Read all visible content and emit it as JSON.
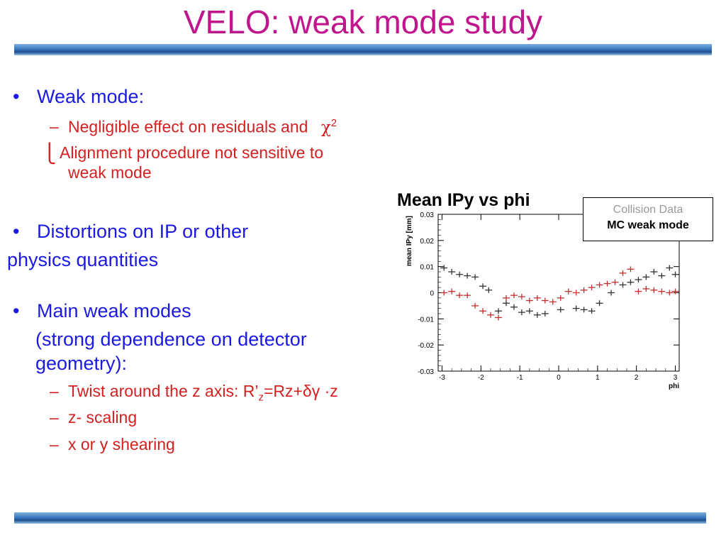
{
  "slide": {
    "title": "VELO: weak mode study",
    "bullets": {
      "b1": "Weak mode:",
      "b1_sub1": "Negligible effect on residuals and",
      "b1_sub1_chi": "χ",
      "b1_sub1_sup": "2",
      "b1_sub2_line1": "Alignment procedure not sensitive to",
      "b1_sub2_line2": "weak mode",
      "b2_line1": "Distortions on IP or other",
      "b2_line2": "physics quantities",
      "b3_line1": "Main weak modes",
      "b3_line2": "(strong dependence on detector",
      "b3_line3": "geometry):",
      "b3_sub1_a": "Twist around the z axis: R’",
      "b3_sub1_sub": "z",
      "b3_sub1_b": "=Rz+δγ ·z",
      "b3_sub2": "z- scaling",
      "b3_sub3": "x or y shearing"
    },
    "bullet_glyph": "•",
    "dash_glyph": "–",
    "hook_glyph": "⎩"
  },
  "chart_data": {
    "type": "scatter",
    "title": "Mean IPy vs phi",
    "xlabel": "phi",
    "ylabel": "mean IPy [mm]",
    "xlim": [
      -3.1,
      3.1
    ],
    "ylim": [
      -0.03,
      0.03
    ],
    "xticks": [
      "-3",
      "-2",
      "-1",
      "0",
      "1",
      "2",
      "3"
    ],
    "yticks": [
      "-0.03",
      "-0.02",
      "-0.01",
      "0",
      "0.01",
      "0.02",
      "0.03"
    ],
    "legend": [
      "Collision Data",
      "MC weak mode"
    ],
    "legend_placement": "top-right",
    "series": [
      {
        "name": "Collision Data",
        "color": "#333333",
        "x": [
          -2.95,
          -2.75,
          -2.55,
          -2.35,
          -2.15,
          -1.95,
          -1.8,
          -1.55,
          -1.35,
          -1.15,
          -0.95,
          -0.75,
          -0.55,
          -0.35,
          0.05,
          0.45,
          0.65,
          0.85,
          1.05,
          1.35,
          1.65,
          1.85,
          2.05,
          2.25,
          2.45,
          2.65,
          2.85,
          3.0
        ],
        "y": [
          0.0095,
          0.008,
          0.007,
          0.0065,
          0.006,
          0.0025,
          0.001,
          -0.007,
          -0.004,
          -0.0055,
          -0.0075,
          -0.007,
          -0.0085,
          -0.008,
          -0.0065,
          -0.006,
          -0.0065,
          -0.007,
          -0.004,
          0.0,
          0.003,
          0.004,
          0.005,
          0.006,
          0.008,
          0.0065,
          0.0095,
          0.007
        ]
      },
      {
        "name": "MC weak mode",
        "color": "#c03030",
        "x": [
          -2.95,
          -2.75,
          -2.55,
          -2.35,
          -2.15,
          -1.95,
          -1.75,
          -1.55,
          -1.35,
          -1.15,
          -0.95,
          -0.75,
          -0.55,
          -0.35,
          -0.15,
          0.05,
          0.25,
          0.45,
          0.65,
          0.85,
          1.05,
          1.25,
          1.45,
          1.65,
          1.85,
          2.05,
          2.25,
          2.45,
          2.65,
          2.85,
          3.0
        ],
        "y": [
          0.0,
          0.0005,
          -0.001,
          -0.001,
          -0.005,
          -0.007,
          -0.0085,
          -0.0095,
          -0.002,
          -0.001,
          -0.0015,
          -0.003,
          -0.002,
          -0.003,
          -0.0035,
          -0.002,
          0.0005,
          0.0,
          0.001,
          0.002,
          0.003,
          0.0035,
          0.004,
          0.0075,
          0.009,
          0.0005,
          0.0015,
          0.001,
          0.0005,
          0.0,
          0.0005
        ]
      }
    ]
  }
}
